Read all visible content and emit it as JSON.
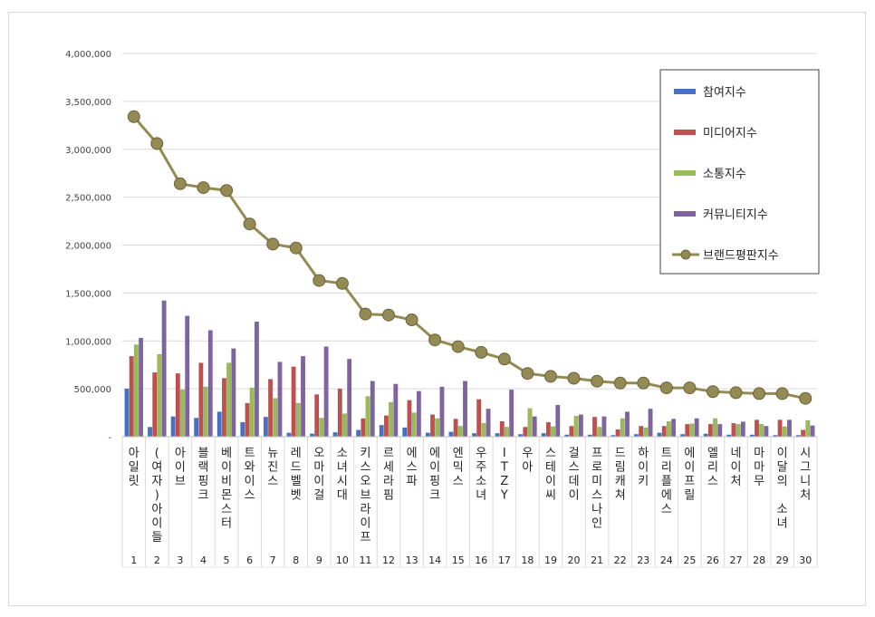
{
  "chart_data": {
    "type": "bar",
    "title": "",
    "xlabel": "",
    "ylabel": "",
    "ylim": [
      0,
      4000000
    ],
    "y_ticks": [
      "-",
      "500,000",
      "1,000,000",
      "1,500,000",
      "2,000,000",
      "2,500,000",
      "3,000,000",
      "3,500,000",
      "4,000,000"
    ],
    "grid": true,
    "legend_position": "top-right",
    "categories": [
      "아일릿",
      "(여자)아이들",
      "아이브",
      "블랙핑크",
      "베이비몬스터",
      "트와이스",
      "뉴진스",
      "레드벨벳",
      "오마이걸",
      "소녀시대",
      "키스오브라이프",
      "르세라핌",
      "에스파",
      "에이핑크",
      "엔믹스",
      "우주소녀",
      "ITZY",
      "우아",
      "스테이씨",
      "걸스데이",
      "프로미스나인",
      "드림캐쳐",
      "하이키",
      "트리플에스",
      "에이프릴",
      "엘리스",
      "네이처",
      "마마무",
      "이달의 소녀",
      "시그니처"
    ],
    "ranks": [
      "1",
      "2",
      "3",
      "4",
      "5",
      "6",
      "7",
      "8",
      "9",
      "10",
      "11",
      "12",
      "13",
      "14",
      "15",
      "16",
      "17",
      "18",
      "19",
      "20",
      "21",
      "22",
      "23",
      "24",
      "25",
      "26",
      "27",
      "28",
      "29",
      "30"
    ],
    "series": [
      {
        "name": "참여지수",
        "color": "#4472c4",
        "kind": "bar",
        "values": [
          500000,
          100000,
          210000,
          195000,
          260000,
          150000,
          205000,
          40000,
          30000,
          45000,
          70000,
          120000,
          95000,
          40000,
          50000,
          35000,
          35000,
          25000,
          35000,
          20000,
          20000,
          15000,
          25000,
          40000,
          25000,
          30000,
          20000,
          20000,
          15000,
          15000
        ]
      },
      {
        "name": "미디어지수",
        "color": "#c0504d",
        "kind": "bar",
        "values": [
          840000,
          670000,
          660000,
          770000,
          610000,
          350000,
          600000,
          730000,
          440000,
          500000,
          190000,
          220000,
          380000,
          230000,
          185000,
          390000,
          160000,
          100000,
          150000,
          110000,
          205000,
          75000,
          110000,
          110000,
          130000,
          130000,
          140000,
          175000,
          175000,
          70000
        ]
      },
      {
        "name": "소통지수",
        "color": "#9bbb59",
        "kind": "bar",
        "values": [
          960000,
          860000,
          490000,
          520000,
          770000,
          510000,
          400000,
          350000,
          195000,
          240000,
          420000,
          360000,
          250000,
          190000,
          110000,
          140000,
          100000,
          295000,
          105000,
          215000,
          100000,
          190000,
          95000,
          160000,
          135000,
          190000,
          130000,
          130000,
          105000,
          170000
        ]
      },
      {
        "name": "커뮤니티지수",
        "color": "#8064a2",
        "kind": "bar",
        "values": [
          1030000,
          1420000,
          1260000,
          1110000,
          920000,
          1200000,
          780000,
          840000,
          940000,
          810000,
          580000,
          550000,
          475000,
          520000,
          580000,
          290000,
          490000,
          210000,
          330000,
          230000,
          210000,
          260000,
          290000,
          185000,
          190000,
          130000,
          155000,
          110000,
          175000,
          115000
        ]
      },
      {
        "name": "브랜드평판지수",
        "color": "#948a54",
        "kind": "line",
        "values": [
          3340000,
          3060000,
          2640000,
          2600000,
          2570000,
          2220000,
          2010000,
          1970000,
          1630000,
          1600000,
          1280000,
          1270000,
          1220000,
          1010000,
          940000,
          880000,
          810000,
          660000,
          630000,
          610000,
          580000,
          560000,
          560000,
          510000,
          510000,
          470000,
          460000,
          450000,
          450000,
          400000
        ]
      }
    ]
  }
}
